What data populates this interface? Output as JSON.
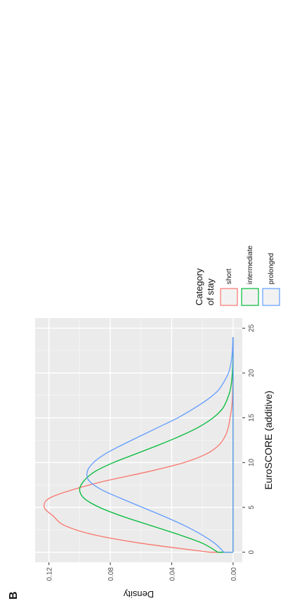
{
  "figure": {
    "panel_label": "B"
  },
  "chart_data": {
    "type": "line",
    "xlabel": "EuroSCORE (additive)",
    "ylabel": "Density",
    "xlim": [
      0,
      25
    ],
    "ylim": [
      0,
      0.125
    ],
    "x_ticks": [
      0,
      5,
      10,
      15,
      20,
      25
    ],
    "y_ticks": [
      0.0,
      0.04,
      0.08,
      0.12
    ],
    "y_tick_labels": [
      "0.00",
      "0.04",
      "0.08",
      "0.12"
    ],
    "x_tick_labels": [
      "0",
      "5",
      "10",
      "15",
      "20",
      "25"
    ],
    "grid": true,
    "orientation": "rotated 90 degrees counter-clockwise",
    "legend": {
      "title_lines": [
        "Category",
        "of stay"
      ],
      "placement": "right"
    },
    "series": [
      {
        "name": "short",
        "color": "#F8766D",
        "x": [
          0,
          1,
          2,
          3,
          4,
          5,
          6,
          7,
          8,
          9,
          10,
          11,
          12,
          13,
          14,
          15,
          16,
          17,
          18,
          19,
          20,
          21,
          22,
          23,
          24
        ],
        "y": [
          0.015,
          0.06,
          0.092,
          0.11,
          0.117,
          0.123,
          0.12,
          0.104,
          0.082,
          0.055,
          0.032,
          0.017,
          0.009,
          0.005,
          0.003,
          0.002,
          0.001,
          0.0005,
          0.0003,
          0.0002,
          0.0001,
          0,
          0,
          0,
          0
        ]
      },
      {
        "name": "intermediate",
        "color": "#00BA38",
        "x": [
          0,
          1,
          2,
          3,
          4,
          5,
          6,
          7,
          8,
          9,
          10,
          11,
          12,
          13,
          14,
          15,
          16,
          17,
          18,
          19,
          20,
          21,
          22,
          23,
          24
        ],
        "y": [
          0.01,
          0.02,
          0.036,
          0.054,
          0.072,
          0.087,
          0.097,
          0.1,
          0.097,
          0.09,
          0.078,
          0.063,
          0.048,
          0.034,
          0.022,
          0.013,
          0.007,
          0.004,
          0.002,
          0.001,
          0.0005,
          0.0002,
          0.0001,
          0,
          0
        ]
      },
      {
        "name": "prolonged",
        "color": "#619CFF",
        "x": [
          0,
          1,
          2,
          3,
          4,
          5,
          6,
          7,
          8,
          9,
          10,
          11,
          12,
          13,
          14,
          15,
          16,
          17,
          18,
          19,
          20,
          21,
          22,
          23,
          24
        ],
        "y": [
          0.006,
          0.012,
          0.021,
          0.032,
          0.045,
          0.059,
          0.073,
          0.086,
          0.094,
          0.095,
          0.091,
          0.083,
          0.072,
          0.06,
          0.048,
          0.036,
          0.026,
          0.017,
          0.01,
          0.006,
          0.003,
          0.0015,
          0.0007,
          0.0003,
          0.0001
        ]
      }
    ]
  }
}
